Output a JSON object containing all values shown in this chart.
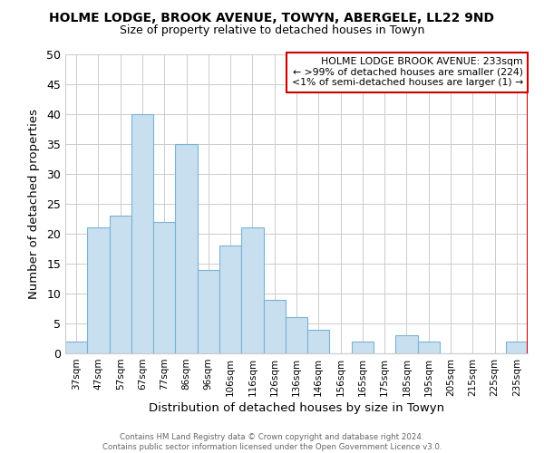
{
  "title": "HOLME LODGE, BROOK AVENUE, TOWYN, ABERGELE, LL22 9ND",
  "subtitle": "Size of property relative to detached houses in Towyn",
  "xlabel": "Distribution of detached houses by size in Towyn",
  "ylabel": "Number of detached properties",
  "footer_line1": "Contains HM Land Registry data © Crown copyright and database right 2024.",
  "footer_line2": "Contains public sector information licensed under the Open Government Licence v3.0.",
  "bar_labels": [
    "37sqm",
    "47sqm",
    "57sqm",
    "67sqm",
    "77sqm",
    "86sqm",
    "96sqm",
    "106sqm",
    "116sqm",
    "126sqm",
    "136sqm",
    "146sqm",
    "156sqm",
    "165sqm",
    "175sqm",
    "185sqm",
    "195sqm",
    "205sqm",
    "215sqm",
    "225sqm",
    "235sqm"
  ],
  "bar_values": [
    2,
    21,
    23,
    40,
    22,
    35,
    14,
    18,
    21,
    9,
    6,
    4,
    0,
    2,
    0,
    3,
    2,
    0,
    0,
    0,
    2
  ],
  "bar_color": "#c8dff0",
  "bar_edge_color": "#7ab3d3",
  "highlight_bar_index": 20,
  "highlight_line_color": "#cc0000",
  "ylim": [
    0,
    50
  ],
  "yticks": [
    0,
    5,
    10,
    15,
    20,
    25,
    30,
    35,
    40,
    45,
    50
  ],
  "annotation_title": "HOLME LODGE BROOK AVENUE: 233sqm",
  "annotation_line2": "← >99% of detached houses are smaller (224)",
  "annotation_line3": "<1% of semi-detached houses are larger (1) →",
  "annotation_box_color": "#ffffff",
  "annotation_border_color": "#cc0000"
}
